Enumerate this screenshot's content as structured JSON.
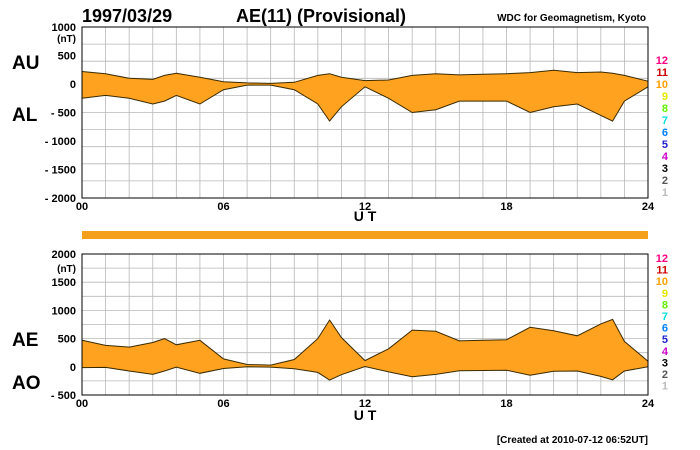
{
  "header": {
    "date": "1997/03/29",
    "title": "AE(11) (Provisional)",
    "source": "WDC for Geomagnetism, Kyoto"
  },
  "footer": {
    "created": "[Created at 2010-07-12 06:52UT]"
  },
  "colors": {
    "fill": "#FFA21F",
    "line": "#3A2A00",
    "grid": "#B8B8B8",
    "bar": "#F5A01C",
    "station_numbers": [
      "#FF0080",
      "#CC0000",
      "#FFA000",
      "#E6E600",
      "#66EE00",
      "#00DDDD",
      "#0080FF",
      "#2020CC",
      "#CC00CC",
      "#000000",
      "#555555",
      "#BBBBBB"
    ]
  },
  "station_numbers": [
    "12",
    "11",
    "10",
    "9",
    "8",
    "7",
    "6",
    "5",
    "4",
    "3",
    "2",
    "1"
  ],
  "chart_data": [
    {
      "type": "area",
      "unit": "(nT)",
      "series": [
        {
          "name": "AU",
          "x": [
            0,
            1,
            2,
            3,
            3.5,
            4,
            5,
            6,
            7,
            8,
            9,
            10,
            10.5,
            11,
            12,
            13,
            14,
            15,
            16,
            17,
            18,
            19,
            20,
            21,
            22,
            22.5,
            23,
            24
          ],
          "values": [
            220,
            180,
            100,
            80,
            150,
            190,
            120,
            40,
            20,
            10,
            30,
            150,
            180,
            120,
            60,
            70,
            150,
            180,
            160,
            170,
            180,
            200,
            240,
            200,
            210,
            190,
            150,
            50
          ]
        },
        {
          "name": "AL",
          "x": [
            0,
            1,
            2,
            3,
            3.5,
            4,
            5,
            6,
            7,
            8,
            9,
            10,
            10.5,
            11,
            12,
            13,
            14,
            15,
            16,
            17,
            18,
            19,
            20,
            21,
            22,
            22.5,
            23,
            24
          ],
          "values": [
            -250,
            -200,
            -250,
            -350,
            -300,
            -200,
            -350,
            -100,
            -20,
            -20,
            -100,
            -350,
            -650,
            -400,
            -50,
            -250,
            -500,
            -450,
            -300,
            -300,
            -300,
            -500,
            -400,
            -350,
            -550,
            -650,
            -300,
            -50
          ]
        }
      ],
      "xlabel": "U T",
      "xticks": [
        "00",
        "06",
        "12",
        "18",
        "24"
      ],
      "xlim": [
        0,
        24
      ],
      "ylim": [
        -2000,
        1000
      ],
      "yticks": [
        1000,
        500,
        0,
        -500,
        -1000,
        -1500,
        -2000
      ],
      "ytick_labels": [
        "1000",
        "500",
        "0",
        "- 500",
        "- 1000",
        "- 1500",
        "- 2000"
      ],
      "grid": true
    },
    {
      "type": "area",
      "unit": "(nT)",
      "series": [
        {
          "name": "AE",
          "x": [
            0,
            1,
            2,
            3,
            3.5,
            4,
            5,
            6,
            7,
            8,
            9,
            10,
            10.5,
            11,
            12,
            13,
            14,
            15,
            16,
            17,
            18,
            19,
            20,
            21,
            22,
            22.5,
            23,
            24
          ],
          "values": [
            470,
            380,
            350,
            430,
            500,
            390,
            470,
            140,
            40,
            30,
            130,
            500,
            830,
            520,
            110,
            320,
            650,
            630,
            460,
            470,
            480,
            700,
            640,
            550,
            760,
            840,
            450,
            100
          ]
        },
        {
          "name": "AO",
          "x": [
            0,
            1,
            2,
            3,
            3.5,
            4,
            5,
            6,
            7,
            8,
            9,
            10,
            10.5,
            11,
            12,
            13,
            14,
            15,
            16,
            17,
            18,
            19,
            20,
            21,
            22,
            22.5,
            23,
            24
          ],
          "values": [
            -15,
            -10,
            -75,
            -135,
            -75,
            -5,
            -115,
            -30,
            0,
            -5,
            -35,
            -100,
            -235,
            -140,
            5,
            -90,
            -175,
            -135,
            -70,
            -65,
            -60,
            -150,
            -80,
            -75,
            -170,
            -230,
            -75,
            0
          ]
        }
      ],
      "xlabel": "U T",
      "xticks": [
        "00",
        "06",
        "12",
        "18",
        "24"
      ],
      "xlim": [
        0,
        24
      ],
      "ylim": [
        -500,
        2000
      ],
      "yticks": [
        2000,
        1500,
        1000,
        500,
        0,
        -500
      ],
      "ytick_labels": [
        "2000",
        "1500",
        "1000",
        "500",
        "0",
        "- 500"
      ],
      "grid": true
    }
  ]
}
